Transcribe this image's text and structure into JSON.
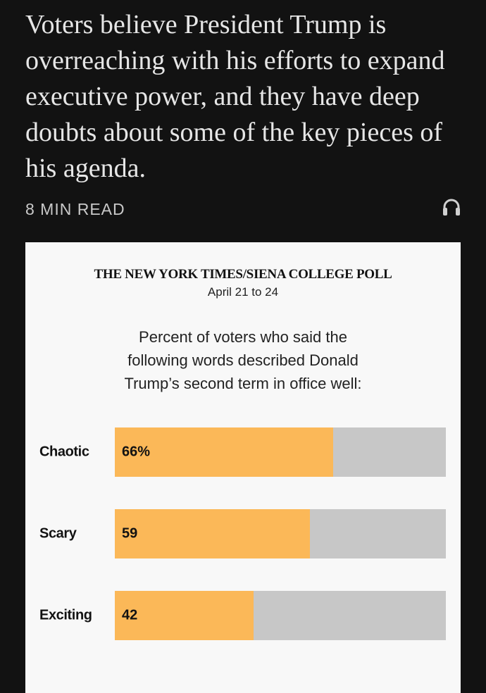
{
  "article": {
    "summary": "Voters believe President Trump is overreaching with his efforts to expand executive power, and they have deep doubts about some of the key pieces of his agenda.",
    "read_time": "8 MIN READ",
    "audio_icon": "headphones-icon"
  },
  "poll": {
    "title": "THE NEW YORK TIMES/SIENA COLLEGE POLL",
    "dates": "April 21 to 24",
    "question": "Percent of voters who said the following words described Donald Trump’s second term in office well:"
  },
  "chart_data": {
    "type": "bar",
    "orientation": "horizontal",
    "categories": [
      "Chaotic",
      "Scary",
      "Exciting"
    ],
    "values": [
      66,
      59,
      42
    ],
    "value_labels": [
      "66%",
      "59",
      "42"
    ],
    "xlim": [
      0,
      100
    ],
    "grid": false,
    "colors": {
      "fill": "#fbb858",
      "track": "#c7c7c7"
    }
  }
}
